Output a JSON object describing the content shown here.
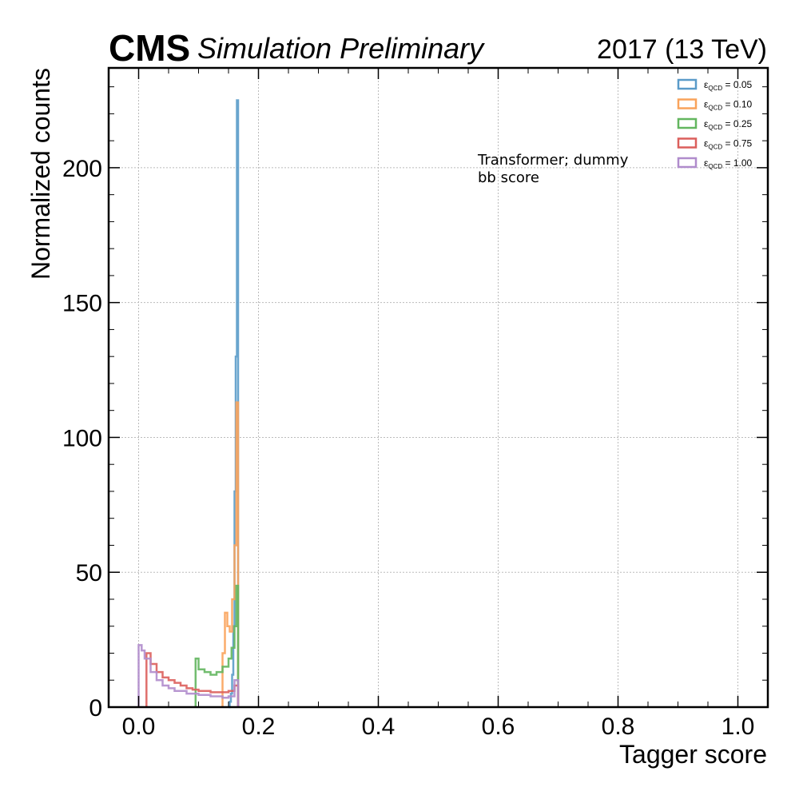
{
  "header": {
    "experiment": "CMS",
    "status": "Simulation Preliminary",
    "lumi": "2017 (13 TeV)"
  },
  "colors": {
    "eff_0_05": "#5a9bc9",
    "eff_0_10": "#f9a35b",
    "eff_0_25": "#63b65f",
    "eff_0_75": "#db5f5c",
    "eff_1_00": "#b08ccc"
  },
  "chart_data": {
    "type": "histogram",
    "xlabel": "Tagger score",
    "ylabel": "Normalized counts",
    "xlim": [
      -0.05,
      1.05
    ],
    "ylim": [
      0,
      237
    ],
    "grid": true,
    "legend_position": "top-right",
    "annotation": [
      "Transformer; dummy",
      "bb score"
    ],
    "x_ticks": [
      "0.0",
      "0.2",
      "0.4",
      "0.6",
      "0.8",
      "1.0"
    ],
    "x_tick_values": [
      0.0,
      0.2,
      0.4,
      0.6,
      0.8,
      1.0
    ],
    "y_ticks": [
      "0",
      "50",
      "100",
      "150",
      "200"
    ],
    "y_tick_values": [
      0,
      50,
      100,
      150,
      200
    ],
    "series": [
      {
        "name": "ε_QCD = 0.05",
        "label_main": "ε",
        "label_sub": "QCD",
        "label_val": " = 0.05",
        "color_key": "eff_0_05",
        "x": [
          0.15,
          0.152,
          0.154,
          0.156,
          0.158,
          0.16,
          0.162,
          0.164,
          0.166
        ],
        "y": [
          0,
          2,
          5,
          12,
          30,
          80,
          130,
          225,
          0
        ]
      },
      {
        "name": "ε_QCD = 0.10",
        "label_main": "ε",
        "label_sub": "QCD",
        "label_val": " = 0.10",
        "color_key": "eff_0_10",
        "x": [
          0.14,
          0.144,
          0.148,
          0.152,
          0.156,
          0.16,
          0.163,
          0.166
        ],
        "y": [
          20,
          35,
          30,
          28,
          40,
          60,
          113,
          0
        ]
      },
      {
        "name": "ε_QCD = 0.25",
        "label_main": "ε",
        "label_sub": "QCD",
        "label_val": " = 0.25",
        "color_key": "eff_0_25",
        "x": [
          0.095,
          0.1,
          0.11,
          0.12,
          0.13,
          0.14,
          0.15,
          0.155,
          0.16,
          0.163,
          0.166
        ],
        "y": [
          18,
          14,
          13,
          12,
          13,
          15,
          18,
          22,
          30,
          45,
          0
        ]
      },
      {
        "name": "ε_QCD = 0.75",
        "label_main": "ε",
        "label_sub": "QCD",
        "label_val": " = 0.75",
        "color_key": "eff_0_75",
        "x": [
          0.013,
          0.02,
          0.03,
          0.04,
          0.05,
          0.06,
          0.07,
          0.08,
          0.09,
          0.1,
          0.11,
          0.12,
          0.13,
          0.14,
          0.15,
          0.16,
          0.166
        ],
        "y": [
          20,
          16,
          13,
          11,
          10,
          9,
          8,
          7,
          6.5,
          6,
          6,
          5.5,
          5.5,
          5.5,
          6,
          8,
          0
        ]
      },
      {
        "name": "ε_QCD = 1.00",
        "label_main": "ε",
        "label_sub": "QCD",
        "label_val": " = 1.00",
        "color_key": "eff_1_00",
        "x": [
          0.0,
          0.005,
          0.01,
          0.02,
          0.03,
          0.04,
          0.05,
          0.06,
          0.08,
          0.1,
          0.12,
          0.14,
          0.15,
          0.16,
          0.166
        ],
        "y": [
          23,
          21,
          18,
          13,
          10,
          8,
          7,
          6,
          5,
          4.5,
          4,
          3.5,
          4,
          10,
          0
        ]
      }
    ]
  }
}
